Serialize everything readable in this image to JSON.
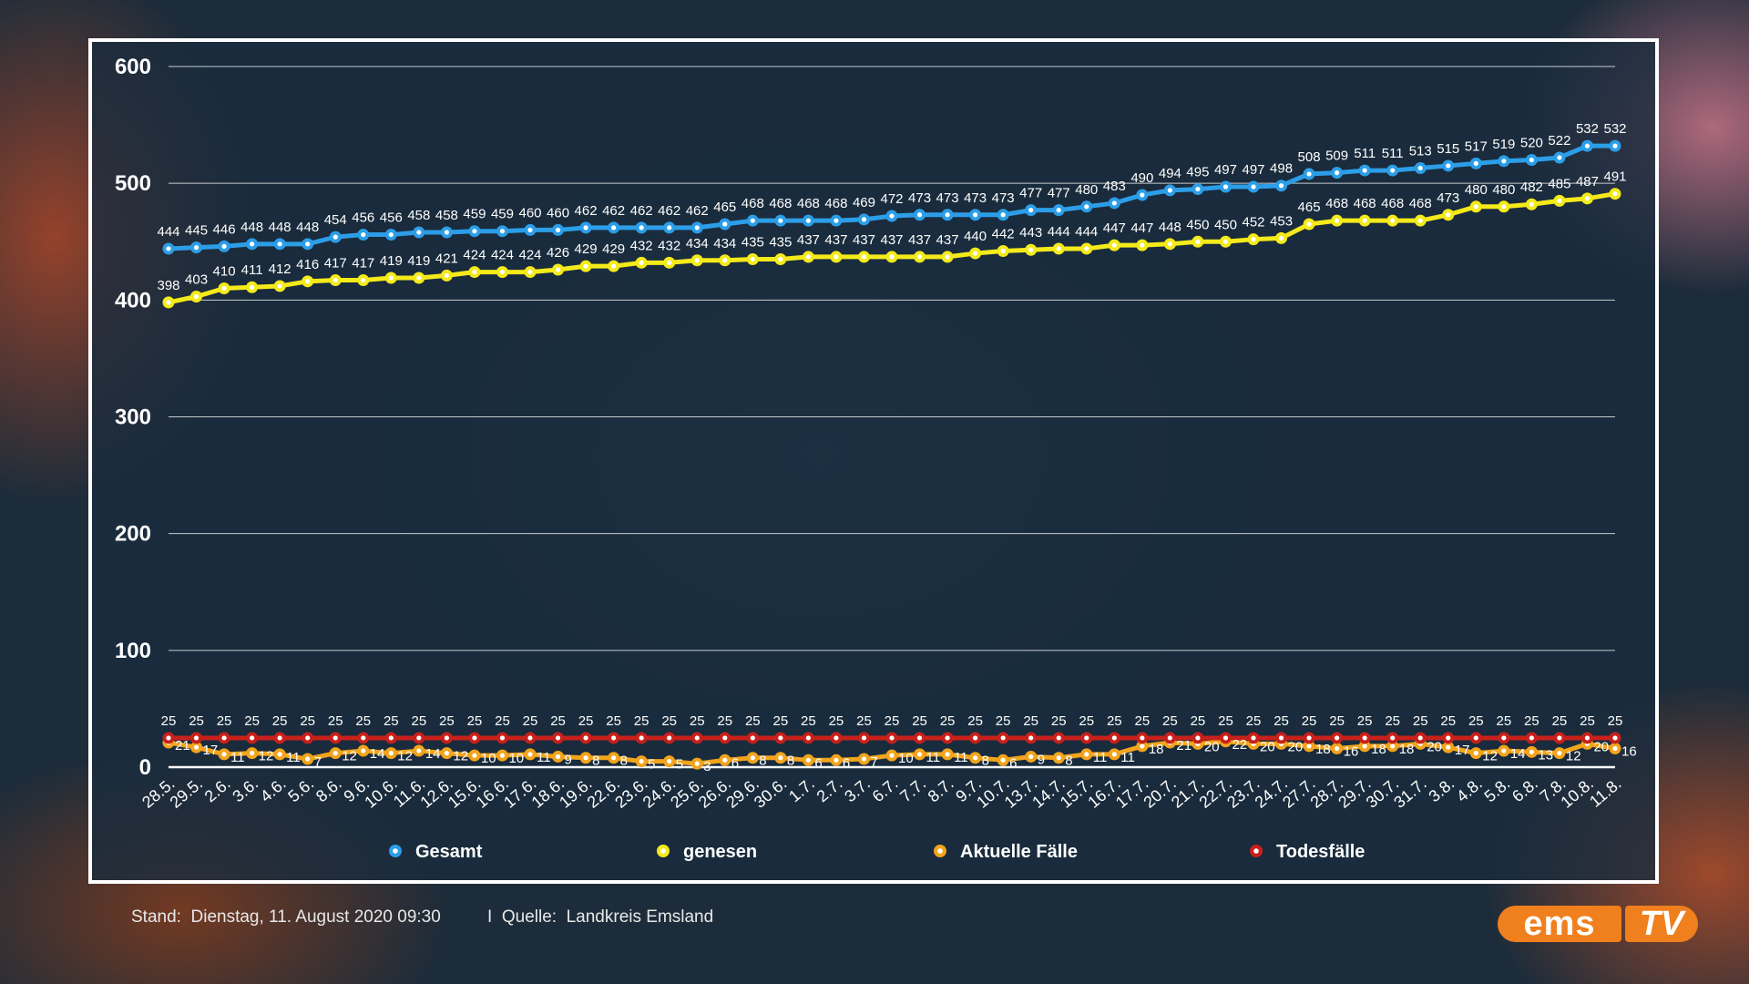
{
  "footer": {
    "stand_label": "Stand:",
    "stand_value": "Dienstag, 11. August 2020 09:30",
    "separator": "I",
    "quelle_label": "Quelle:",
    "quelle_value": "Landkreis Emsland"
  },
  "logo": {
    "part1": "ems",
    "part2": "TV"
  },
  "chart_data": {
    "type": "line",
    "title": "",
    "xlabel": "",
    "ylabel": "",
    "ylim": [
      0,
      600
    ],
    "yticks": [
      0,
      100,
      200,
      300,
      400,
      500,
      600
    ],
    "grid": true,
    "legend_position": "bottom",
    "categories": [
      "28.5.",
      "29.5.",
      "2.6.",
      "3.6.",
      "4.6.",
      "5.6.",
      "8.6.",
      "9.6.",
      "10.6.",
      "11.6.",
      "12.6.",
      "15.6.",
      "16.6.",
      "17.6.",
      "18.6.",
      "19.6.",
      "22.6.",
      "23.6.",
      "24.6.",
      "25.6.",
      "26.6.",
      "29.6.",
      "30.6.",
      "1.7.",
      "2.7.",
      "3.7.",
      "6.7.",
      "7.7.",
      "8.7.",
      "9.7.",
      "10.7.",
      "13.7.",
      "14.7.",
      "15.7.",
      "16.7.",
      "17.7.",
      "20.7.",
      "21.7.",
      "22.7.",
      "23.7.",
      "24.7.",
      "27.7.",
      "28.7.",
      "29.7.",
      "30.7.",
      "31.7.",
      "3.8.",
      "4.8.",
      "5.8.",
      "6.8.",
      "7.8.",
      "10.8.",
      "11.8."
    ],
    "series": [
      {
        "name": "Gesamt",
        "color": "#2c9ee8",
        "values": [
          444,
          445,
          446,
          448,
          448,
          448,
          454,
          456,
          456,
          458,
          458,
          459,
          459,
          460,
          460,
          462,
          462,
          462,
          462,
          462,
          465,
          468,
          468,
          468,
          468,
          469,
          472,
          473,
          473,
          473,
          473,
          477,
          477,
          480,
          483,
          490,
          494,
          495,
          497,
          497,
          498,
          508,
          509,
          511,
          511,
          513,
          515,
          517,
          519,
          520,
          522,
          532,
          532
        ]
      },
      {
        "name": "genesen",
        "color": "#f4ea1a",
        "values": [
          398,
          403,
          410,
          411,
          412,
          416,
          417,
          417,
          419,
          419,
          421,
          424,
          424,
          424,
          426,
          429,
          429,
          432,
          432,
          434,
          434,
          435,
          435,
          437,
          437,
          437,
          437,
          437,
          437,
          440,
          442,
          443,
          444,
          444,
          447,
          447,
          448,
          450,
          450,
          452,
          453,
          465,
          468,
          468,
          468,
          468,
          473,
          480,
          480,
          482,
          485,
          487,
          491
        ]
      },
      {
        "name": "Aktuelle Fälle",
        "color": "#f2a41c",
        "values": [
          21,
          17,
          11,
          12,
          11,
          7,
          12,
          14,
          12,
          14,
          12,
          10,
          10,
          11,
          9,
          8,
          8,
          5,
          5,
          3,
          6,
          8,
          8,
          6,
          6,
          7,
          10,
          11,
          11,
          8,
          6,
          9,
          8,
          11,
          11,
          18,
          21,
          20,
          22,
          20,
          20,
          18,
          16,
          18,
          18,
          20,
          17,
          12,
          14,
          13,
          12,
          20,
          16
        ]
      },
      {
        "name": "Todesfälle",
        "color": "#c8201a",
        "values": [
          25,
          25,
          25,
          25,
          25,
          25,
          25,
          25,
          25,
          25,
          25,
          25,
          25,
          25,
          25,
          25,
          25,
          25,
          25,
          25,
          25,
          25,
          25,
          25,
          25,
          25,
          25,
          25,
          25,
          25,
          25,
          25,
          25,
          25,
          25,
          25,
          25,
          25,
          25,
          25,
          25,
          25,
          25,
          25,
          25,
          25,
          25,
          25,
          25,
          25,
          25,
          25,
          25
        ]
      }
    ]
  }
}
